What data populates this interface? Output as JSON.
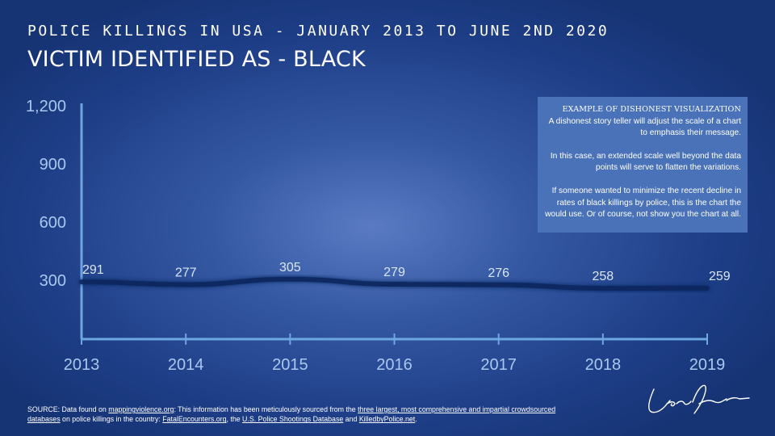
{
  "header": {
    "title": "POLICE KILLINGS IN USA - JANUARY 2013 TO JUNE 2ND 2020",
    "subtitle": "VICTIM IDENTIFIED AS - BLACK"
  },
  "note": {
    "heading": "EXAMPLE OF DISHONEST VISUALIZATION",
    "paragraph1": "A dishonest story teller will adjust the scale of a chart to emphasis their message.",
    "paragraph2": "In this case, an extended scale well beyond the data points will serve to flatten the variations.",
    "paragraph3": "If someone wanted to minimize the recent decline in rates of black killings by police, this is the chart the would use. Or of course, not show you the chart at all."
  },
  "source": {
    "prefix": "SOURCE: Data found on ",
    "link1": "mappingviolence.org",
    "mid1": ": This information has been meticulously sourced from the ",
    "link2": "three largest, most comprehensive and impartial crowdsourced databases",
    "mid2": " on police killings in the country: ",
    "link3": "FatalEncounters.org",
    "mid3": ", the ",
    "link4": "U.S. Police Shootings Database",
    "mid4": " and ",
    "link5": "KilledbyPolice.net",
    "suffix": "."
  },
  "colors": {
    "line": "#10285e",
    "axis": "#6ea6e0",
    "note_bg": "#4a72b8"
  },
  "chart_data": {
    "type": "line",
    "x": [
      "2013",
      "2014",
      "2015",
      "2016",
      "2017",
      "2018",
      "2019"
    ],
    "series": [
      {
        "values": [
          291,
          277,
          305,
          279,
          276,
          258,
          259
        ]
      }
    ],
    "data_labels": [
      "291",
      "277",
      "305",
      "279",
      "276",
      "258",
      "259"
    ],
    "yticks": [
      300,
      600,
      900,
      1200
    ],
    "ytick_labels": [
      "300",
      "600",
      "900",
      "1,200"
    ],
    "ylim": [
      50,
      1200
    ],
    "grid": false,
    "legend": "none"
  }
}
